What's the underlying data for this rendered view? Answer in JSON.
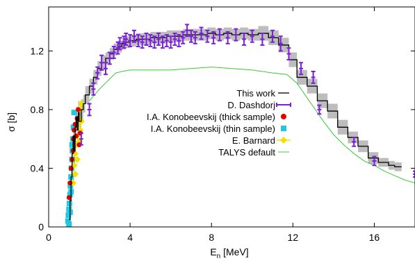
{
  "chart_data": {
    "type": "scatter",
    "xlabel_main": "E",
    "xlabel_sub": "n",
    "xlabel_rest": " [MeV]",
    "ylabel": "σ [b]",
    "xlim": [
      0,
      18
    ],
    "ylim": [
      0,
      1.5
    ],
    "x_ticks": [
      0,
      4,
      8,
      12,
      16
    ],
    "y_ticks": [
      0,
      0.4,
      0.8,
      1.2
    ],
    "y_tick_labels": [
      "0",
      "0.4",
      "0.8",
      "1.2"
    ],
    "legend_position": "center-right",
    "series": [
      {
        "name": "This work",
        "kind": "step-band",
        "color": "#000000",
        "band_color": "#bdbdbd",
        "points": [
          [
            1.0,
            0.05,
            0.04
          ],
          [
            1.05,
            0.18,
            0.05
          ],
          [
            1.1,
            0.34,
            0.06
          ],
          [
            1.15,
            0.5,
            0.07
          ],
          [
            1.2,
            0.62,
            0.07
          ],
          [
            1.25,
            0.52,
            0.08
          ],
          [
            1.3,
            0.68,
            0.08
          ],
          [
            1.35,
            0.75,
            0.07
          ],
          [
            1.4,
            0.66,
            0.08
          ],
          [
            1.45,
            0.78,
            0.08
          ],
          [
            1.5,
            0.72,
            0.07
          ],
          [
            1.6,
            0.8,
            0.07
          ],
          [
            1.7,
            0.84,
            0.06
          ],
          [
            1.8,
            0.9,
            0.06
          ],
          [
            2.0,
            0.96,
            0.05
          ],
          [
            2.2,
            1.02,
            0.05
          ],
          [
            2.4,
            1.08,
            0.05
          ],
          [
            2.6,
            1.12,
            0.05
          ],
          [
            2.8,
            1.15,
            0.04
          ],
          [
            3.0,
            1.18,
            0.04
          ],
          [
            3.2,
            1.21,
            0.04
          ],
          [
            3.4,
            1.23,
            0.04
          ],
          [
            3.6,
            1.25,
            0.04
          ],
          [
            3.8,
            1.26,
            0.04
          ],
          [
            4.0,
            1.27,
            0.04
          ],
          [
            4.3,
            1.28,
            0.04
          ],
          [
            4.6,
            1.28,
            0.04
          ],
          [
            5.0,
            1.29,
            0.04
          ],
          [
            5.4,
            1.29,
            0.04
          ],
          [
            5.8,
            1.3,
            0.04
          ],
          [
            6.2,
            1.3,
            0.04
          ],
          [
            6.6,
            1.31,
            0.04
          ],
          [
            7.0,
            1.31,
            0.04
          ],
          [
            7.4,
            1.31,
            0.04
          ],
          [
            7.8,
            1.32,
            0.04
          ],
          [
            8.2,
            1.31,
            0.04
          ],
          [
            8.6,
            1.32,
            0.04
          ],
          [
            9.0,
            1.31,
            0.04
          ],
          [
            9.4,
            1.32,
            0.04
          ],
          [
            9.8,
            1.31,
            0.04
          ],
          [
            10.3,
            1.32,
            0.05
          ],
          [
            10.8,
            1.29,
            0.05
          ],
          [
            11.3,
            1.24,
            0.05
          ],
          [
            11.8,
            1.14,
            0.05
          ],
          [
            12.2,
            1.02,
            0.05
          ],
          [
            12.7,
            0.96,
            0.05
          ],
          [
            13.2,
            0.86,
            0.05
          ],
          [
            13.7,
            0.79,
            0.05
          ],
          [
            14.2,
            0.68,
            0.05
          ],
          [
            14.7,
            0.61,
            0.04
          ],
          [
            15.2,
            0.55,
            0.04
          ],
          [
            15.7,
            0.47,
            0.04
          ],
          [
            16.2,
            0.44,
            0.03
          ],
          [
            16.7,
            0.42,
            0.03
          ],
          [
            17.0,
            0.41,
            0.03
          ]
        ]
      },
      {
        "name": "D. Dashdorj",
        "kind": "errorbar-marker",
        "color": "#7a1fd6",
        "points": [
          [
            1.6,
            0.6,
            0.04
          ],
          [
            2.0,
            0.8,
            0.04
          ],
          [
            2.2,
            0.94,
            0.04
          ],
          [
            2.4,
            1.05,
            0.04
          ],
          [
            2.6,
            1.12,
            0.05
          ],
          [
            2.8,
            1.08,
            0.04
          ],
          [
            3.0,
            1.15,
            0.04
          ],
          [
            3.2,
            1.19,
            0.04
          ],
          [
            3.4,
            1.22,
            0.04
          ],
          [
            3.5,
            1.25,
            0.04
          ],
          [
            3.7,
            1.26,
            0.04
          ],
          [
            3.8,
            1.28,
            0.04
          ],
          [
            4.0,
            1.27,
            0.04
          ],
          [
            4.2,
            1.3,
            0.04
          ],
          [
            4.4,
            1.27,
            0.04
          ],
          [
            4.6,
            1.26,
            0.04
          ],
          [
            4.8,
            1.28,
            0.04
          ],
          [
            5.0,
            1.27,
            0.04
          ],
          [
            5.2,
            1.26,
            0.04
          ],
          [
            5.4,
            1.28,
            0.04
          ],
          [
            5.6,
            1.26,
            0.04
          ],
          [
            5.8,
            1.27,
            0.04
          ],
          [
            6.0,
            1.26,
            0.04
          ],
          [
            6.2,
            1.28,
            0.04
          ],
          [
            6.4,
            1.27,
            0.04
          ],
          [
            6.6,
            1.29,
            0.04
          ],
          [
            6.8,
            1.34,
            0.04
          ],
          [
            7.0,
            1.3,
            0.04
          ],
          [
            7.2,
            1.29,
            0.04
          ],
          [
            7.5,
            1.32,
            0.04
          ],
          [
            7.8,
            1.3,
            0.04
          ],
          [
            8.1,
            1.29,
            0.04
          ],
          [
            8.4,
            1.31,
            0.04
          ],
          [
            8.8,
            1.29,
            0.04
          ],
          [
            9.2,
            1.31,
            0.04
          ],
          [
            9.6,
            1.28,
            0.04
          ],
          [
            10.0,
            1.3,
            0.04
          ],
          [
            10.5,
            1.28,
            0.04
          ],
          [
            11.0,
            1.3,
            0.04
          ],
          [
            11.4,
            1.25,
            0.05
          ],
          [
            11.8,
            1.18,
            0.04
          ],
          [
            12.4,
            1.08,
            0.04
          ],
          [
            13.0,
            1.02,
            0.04
          ],
          [
            13.3,
            0.8,
            0.03
          ],
          [
            15.0,
            0.58,
            0.03
          ],
          [
            16.0,
            0.45,
            0.03
          ],
          [
            18.0,
            0.36,
            0.02
          ]
        ]
      },
      {
        "name": "I.A. Konobeevskij (thick sample)",
        "kind": "circle-marker",
        "color": "#e00000",
        "points": [
          [
            1.0,
            0.2
          ],
          [
            1.05,
            0.3
          ],
          [
            1.1,
            0.4
          ],
          [
            1.15,
            0.46
          ],
          [
            1.2,
            0.52
          ],
          [
            1.22,
            0.6
          ],
          [
            1.25,
            0.66
          ],
          [
            1.3,
            0.7
          ],
          [
            1.35,
            0.62
          ],
          [
            1.4,
            0.74
          ],
          [
            1.45,
            0.8
          ],
          [
            1.5,
            0.56
          ],
          [
            1.55,
            0.64
          ]
        ]
      },
      {
        "name": "I.A. Konobeevskij (thin sample)",
        "kind": "square-marker",
        "color": "#1ec8e0",
        "points": [
          [
            0.95,
            0.04
          ],
          [
            0.97,
            0.08
          ],
          [
            1.0,
            0.12
          ],
          [
            1.02,
            0.16
          ],
          [
            1.05,
            0.22
          ],
          [
            1.07,
            0.28
          ],
          [
            1.1,
            0.34
          ],
          [
            1.12,
            0.4
          ],
          [
            1.15,
            0.46
          ],
          [
            1.17,
            0.52
          ],
          [
            1.2,
            0.6
          ],
          [
            1.22,
            0.68
          ],
          [
            1.25,
            0.78
          ],
          [
            1.0,
            0.02
          ],
          [
            1.05,
            0.1
          ],
          [
            1.1,
            0.24
          ],
          [
            1.15,
            0.56
          ]
        ]
      },
      {
        "name": "E. Barnard",
        "kind": "diamond-marker",
        "color": "#f0e000",
        "points": [
          [
            1.2,
            0.3
          ],
          [
            1.25,
            0.42
          ],
          [
            1.3,
            0.5
          ],
          [
            1.35,
            0.56
          ],
          [
            1.4,
            0.62
          ],
          [
            1.45,
            0.7
          ],
          [
            1.5,
            0.74
          ],
          [
            1.55,
            0.8
          ],
          [
            1.6,
            0.84
          ],
          [
            1.3,
            0.36
          ],
          [
            1.4,
            0.46
          ],
          [
            1.5,
            0.58
          ],
          [
            1.55,
            0.66
          ],
          [
            1.6,
            0.72
          ]
        ]
      },
      {
        "name": "TALYS default",
        "kind": "line",
        "color": "#3cc83c",
        "points": [
          [
            2.0,
            0.86
          ],
          [
            2.5,
            0.94
          ],
          [
            3.0,
            1.01
          ],
          [
            3.3,
            1.05
          ],
          [
            3.6,
            1.06
          ],
          [
            4.0,
            1.07
          ],
          [
            5.0,
            1.07
          ],
          [
            6.0,
            1.07
          ],
          [
            7.0,
            1.08
          ],
          [
            8.0,
            1.09
          ],
          [
            9.0,
            1.08
          ],
          [
            10.0,
            1.07
          ],
          [
            11.0,
            1.05
          ],
          [
            11.7,
            1.04
          ],
          [
            12.2,
            0.98
          ],
          [
            12.6,
            0.9
          ],
          [
            13.0,
            0.82
          ],
          [
            13.5,
            0.72
          ],
          [
            14.0,
            0.63
          ],
          [
            14.5,
            0.56
          ],
          [
            15.0,
            0.5
          ],
          [
            15.5,
            0.45
          ],
          [
            16.0,
            0.42
          ],
          [
            16.5,
            0.38
          ],
          [
            17.0,
            0.35
          ],
          [
            17.5,
            0.32
          ],
          [
            18.0,
            0.3
          ]
        ]
      }
    ]
  }
}
